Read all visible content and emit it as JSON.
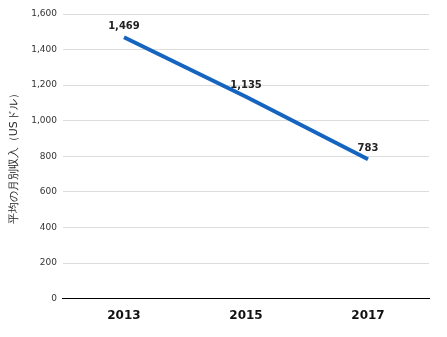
{
  "chart_data": {
    "type": "line",
    "y_label": "平均の月別収入（USドル）",
    "categories": [
      "2013",
      "2015",
      "2017"
    ],
    "values": [
      1469,
      1135,
      783
    ],
    "value_labels": [
      "1,469",
      "1,135",
      "783"
    ],
    "data_labels": true,
    "color": "#1565c0",
    "ylim": [
      0,
      1600
    ],
    "yticks": [
      0,
      200,
      400,
      600,
      800,
      {
        "value": 1000,
        "label": "1,000"
      },
      {
        "value": 1200,
        "label": "1,200"
      },
      {
        "value": 1400,
        "label": "1,400"
      },
      {
        "value": 1600,
        "label": "1,600"
      }
    ],
    "grid": true
  }
}
